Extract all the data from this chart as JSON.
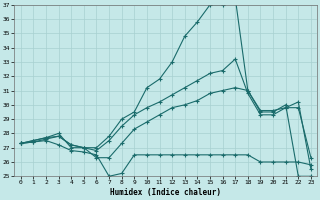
{
  "title": "",
  "xlabel": "Humidex (Indice chaleur)",
  "xlim": [
    -0.5,
    23.5
  ],
  "ylim": [
    25,
    37
  ],
  "xticks": [
    0,
    1,
    2,
    3,
    4,
    5,
    6,
    7,
    8,
    9,
    10,
    11,
    12,
    13,
    14,
    15,
    16,
    17,
    18,
    19,
    20,
    21,
    22,
    23
  ],
  "yticks": [
    25,
    26,
    27,
    28,
    29,
    30,
    31,
    32,
    33,
    34,
    35,
    36,
    37
  ],
  "bg_color": "#c5e8e8",
  "grid_color": "#a8d0d0",
  "line_color": "#1a6b6b",
  "line1_y": [
    27.3,
    27.5,
    27.7,
    27.8,
    27.2,
    27.0,
    27.0,
    27.8,
    29.0,
    29.5,
    31.2,
    31.8,
    33.0,
    34.8,
    35.8,
    37.0,
    37.0,
    37.5,
    31.0,
    29.5,
    29.5,
    30.0,
    25.0,
    25.0
  ],
  "line2_y": [
    27.3,
    27.4,
    27.5,
    27.2,
    26.8,
    26.7,
    26.5,
    25.0,
    25.2,
    26.5,
    26.5,
    26.5,
    26.5,
    26.5,
    26.5,
    26.5,
    26.5,
    26.5,
    26.5,
    26.0,
    26.0,
    26.0,
    26.0,
    25.8
  ],
  "line3_y": [
    27.3,
    27.5,
    27.7,
    28.0,
    27.0,
    27.0,
    26.8,
    27.5,
    28.5,
    29.3,
    29.8,
    30.2,
    30.7,
    31.2,
    31.7,
    32.2,
    32.4,
    33.2,
    30.8,
    29.3,
    29.3,
    29.8,
    30.2,
    25.5
  ],
  "line4_y": [
    27.3,
    27.4,
    27.6,
    27.8,
    27.2,
    27.0,
    26.3,
    26.3,
    27.3,
    28.3,
    28.8,
    29.3,
    29.8,
    30.0,
    30.3,
    30.8,
    31.0,
    31.2,
    31.0,
    29.6,
    29.6,
    29.8,
    29.8,
    26.3
  ]
}
